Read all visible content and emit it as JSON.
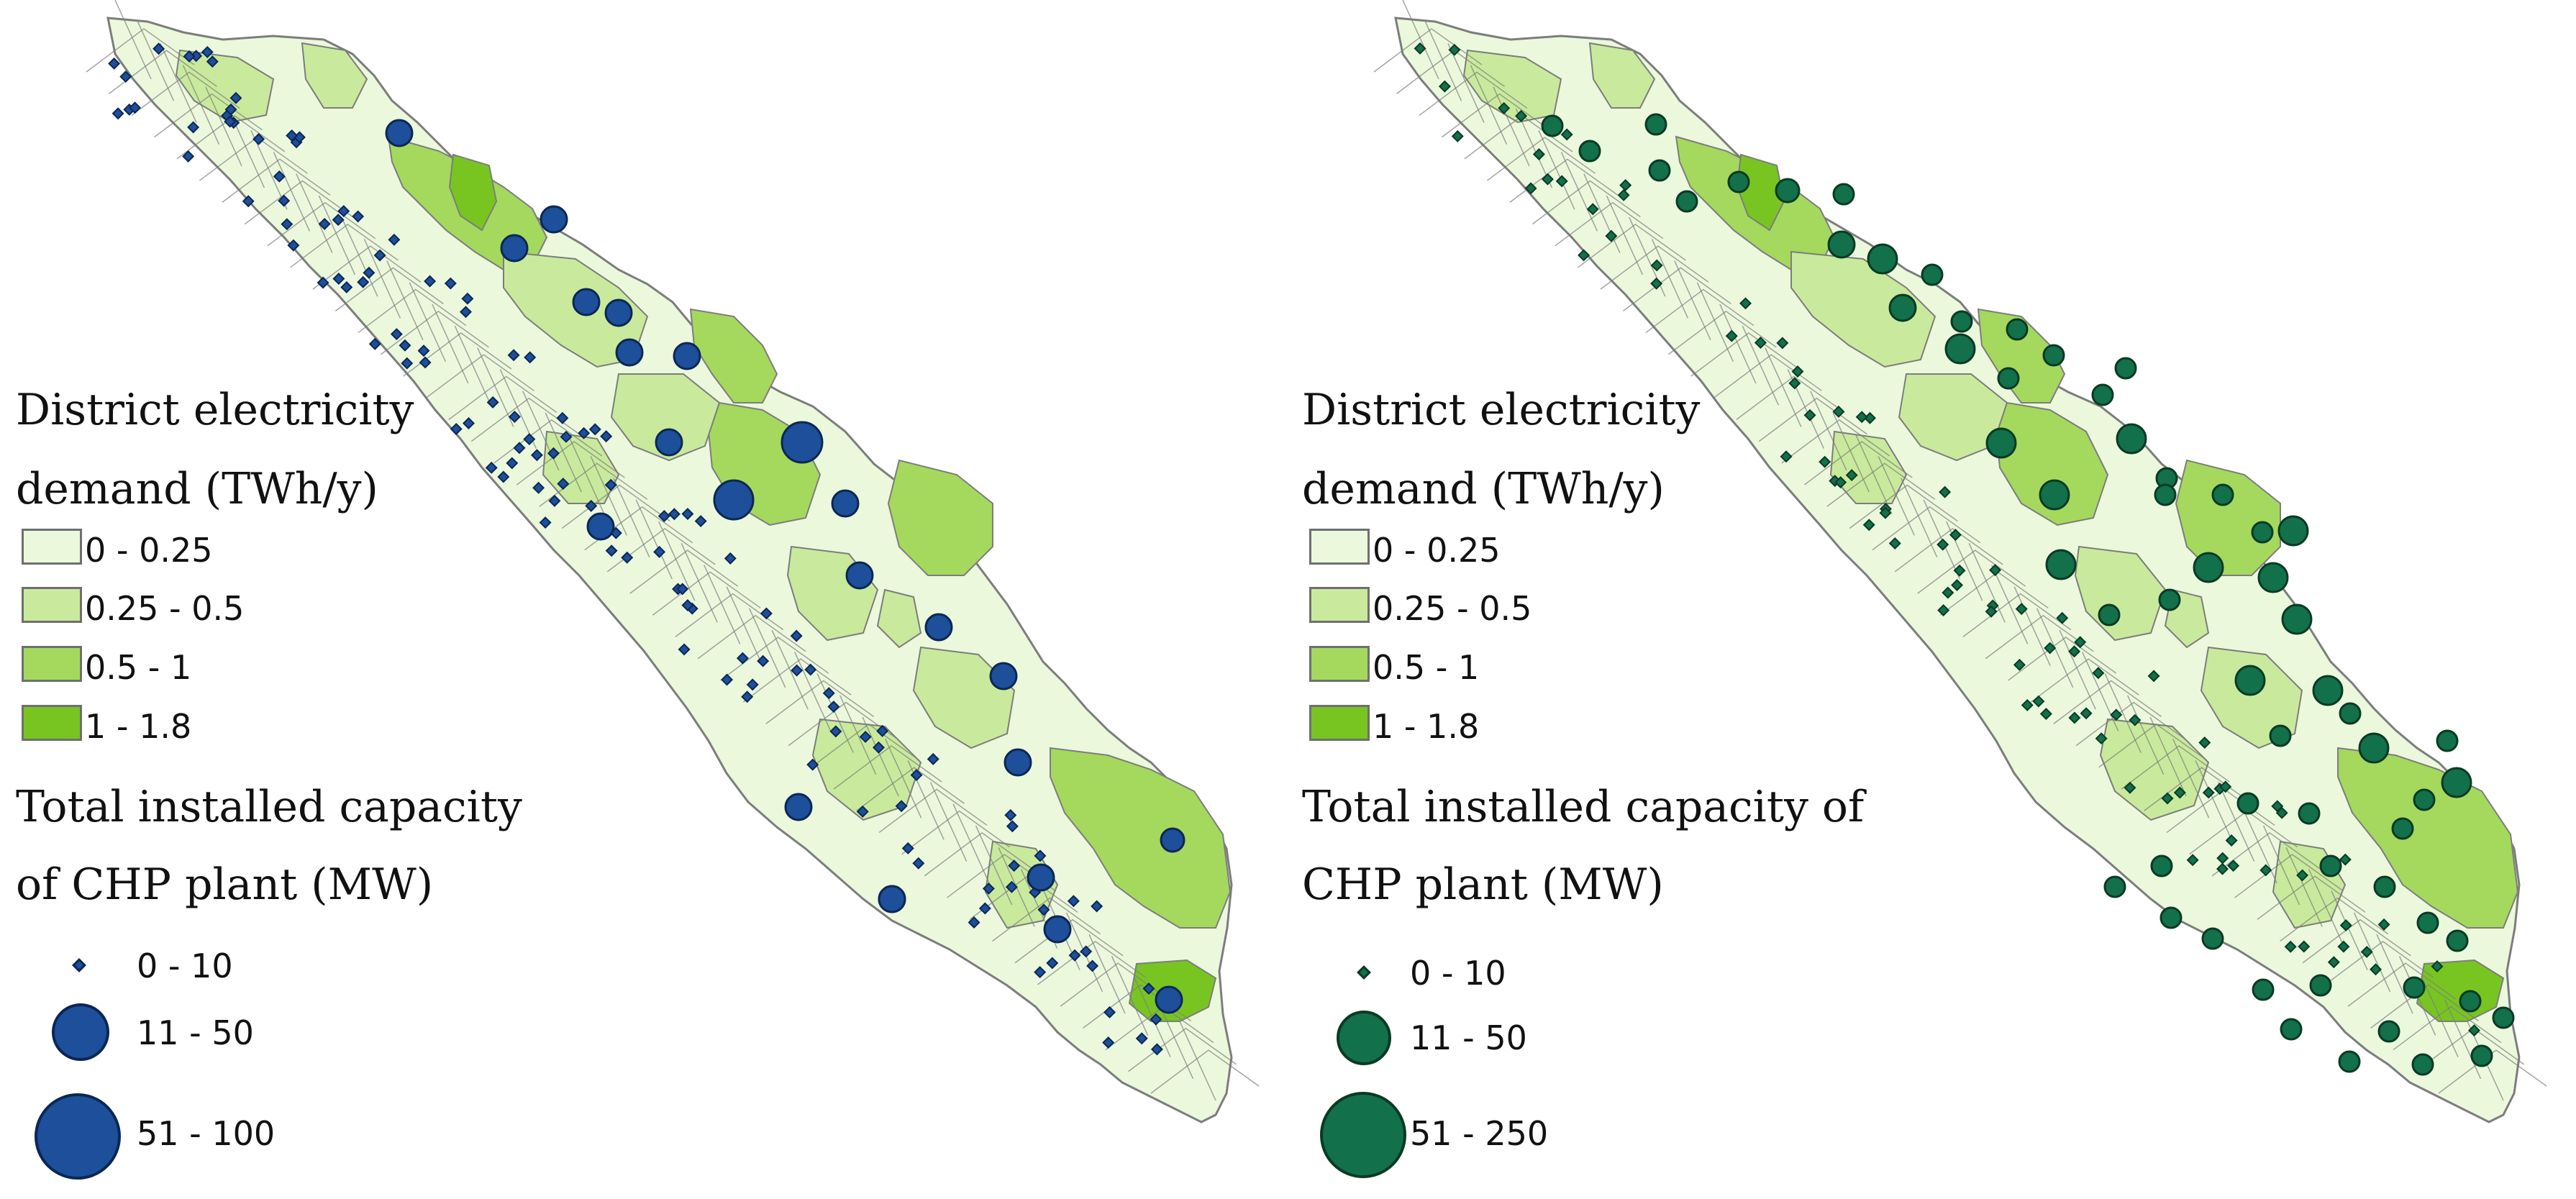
{
  "colors": {
    "class_0_025": "#ebf8dc",
    "class_025_05": "#c9ea9c",
    "class_05_1": "#a4d95e",
    "class_1_18": "#78c522",
    "border": "#7d7d7d",
    "marker_blue": "#1d4f9a",
    "marker_blue_outline": "#0b2754",
    "marker_green": "#12704a",
    "marker_green_outline": "#0a3a25"
  },
  "legend": {
    "demand_title_line1": "District electricity",
    "demand_title_line2": "demand (TWh/y)",
    "demand_classes": [
      "0 - 0.25",
      "0.25 - 0.5",
      "0.5 - 1",
      "1 - 1.8"
    ]
  },
  "panels": [
    {
      "capacity_title_line1": "Total installed capacity",
      "capacity_title_line2": "of CHP plant (MW)",
      "capacity_classes": [
        "0 - 10",
        "11 - 50",
        "51 - 100"
      ],
      "marker_color": "#1d4f9a",
      "marker_outline": "#0b2754"
    },
    {
      "capacity_title_line1": "Total installed capacity of",
      "capacity_title_line2": "CHP plant (MW)",
      "capacity_classes": [
        "0 - 10",
        "11 - 50",
        "51 - 250"
      ],
      "marker_color": "#12704a",
      "marker_outline": "#0a3a25"
    }
  ]
}
